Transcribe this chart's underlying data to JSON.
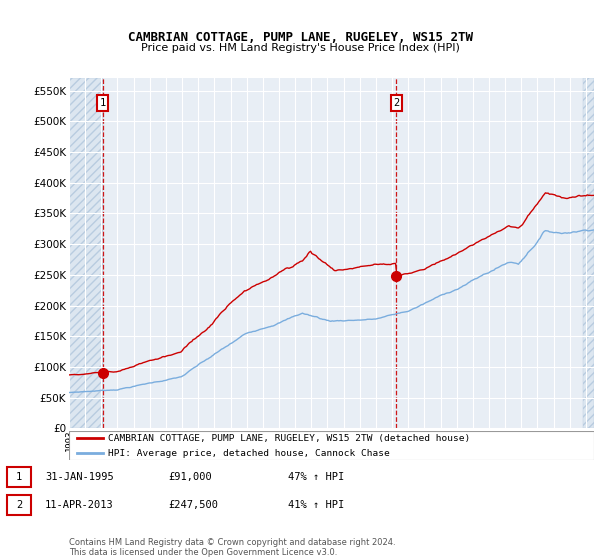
{
  "title": "CAMBRIAN COTTAGE, PUMP LANE, RUGELEY, WS15 2TW",
  "subtitle": "Price paid vs. HM Land Registry's House Price Index (HPI)",
  "sale1_date": 1995.08,
  "sale1_price": 91000,
  "sale1_label": "1",
  "sale2_date": 2013.27,
  "sale2_price": 247500,
  "sale2_label": "2",
  "legend_line1": "CAMBRIAN COTTAGE, PUMP LANE, RUGELEY, WS15 2TW (detached house)",
  "legend_line2": "HPI: Average price, detached house, Cannock Chase",
  "footer": "Contains HM Land Registry data © Crown copyright and database right 2024.\nThis data is licensed under the Open Government Licence v3.0.",
  "hpi_color": "#7aadde",
  "price_color": "#cc0000",
  "background_plot": "#e8eef5",
  "grid_color": "#ffffff",
  "ylim": [
    0,
    570000
  ],
  "xlim_start": 1993.0,
  "xlim_end": 2025.5,
  "data_start": 1993.0,
  "data_end": 2024.9
}
